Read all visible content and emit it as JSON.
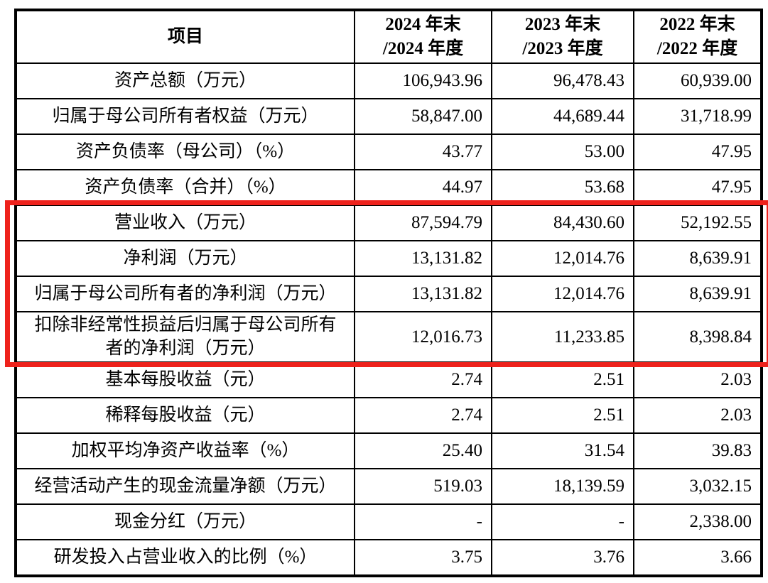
{
  "table": {
    "headers": [
      "项目",
      "2024 年末\n/2024 年度",
      "2023 年末\n/2023 年度",
      "2022 年末\n/2022 年度"
    ],
    "rows": [
      {
        "label": "资产总额（万元）",
        "values": [
          "106,943.96",
          "96,478.43",
          "60,939.00"
        ]
      },
      {
        "label": "归属于母公司所有者权益（万元）",
        "values": [
          "58,847.00",
          "44,689.44",
          "31,718.99"
        ]
      },
      {
        "label": "资产负债率（母公司）（%）",
        "values": [
          "43.77",
          "53.00",
          "47.95"
        ]
      },
      {
        "label": "资产负债率（合并）（%）",
        "values": [
          "44.97",
          "53.68",
          "47.95"
        ]
      },
      {
        "label": "营业收入（万元）",
        "values": [
          "87,594.79",
          "84,430.60",
          "52,192.55"
        ]
      },
      {
        "label": "净利润（万元）",
        "values": [
          "13,131.82",
          "12,014.76",
          "8,639.91"
        ]
      },
      {
        "label": "归属于母公司所有者的净利润（万元）",
        "values": [
          "13,131.82",
          "12,014.76",
          "8,639.91"
        ]
      },
      {
        "label": "扣除非经常性损益后归属于母公司所有\n者的净利润（万元）",
        "values": [
          "12,016.73",
          "11,233.85",
          "8,398.84"
        ]
      },
      {
        "label": "基本每股收益（元）",
        "values": [
          "2.74",
          "2.51",
          "2.03"
        ]
      },
      {
        "label": "稀释每股收益（元）",
        "values": [
          "2.74",
          "2.51",
          "2.03"
        ]
      },
      {
        "label": "加权平均净资产收益率（%）",
        "values": [
          "25.40",
          "31.54",
          "39.83"
        ]
      },
      {
        "label": "经营活动产生的现金流量净额（万元）",
        "values": [
          "519.03",
          "18,139.59",
          "3,032.15"
        ]
      },
      {
        "label": "现金分红（万元）",
        "values": [
          "-",
          "-",
          "2,338.00"
        ]
      },
      {
        "label": "研发投入占营业收入的比例（%）",
        "values": [
          "3.75",
          "3.76",
          "3.66"
        ]
      }
    ]
  },
  "highlight": {
    "color": "#ee221c",
    "start_row_index": 4,
    "end_row_index": 7
  }
}
